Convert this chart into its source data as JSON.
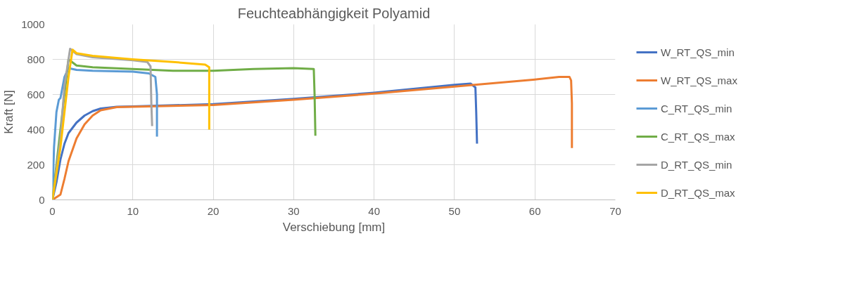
{
  "chart_data": {
    "type": "line",
    "title": "Feuchteabhängigkeit Polyamid",
    "xlabel": "Verschiebung [mm]",
    "ylabel": "Kraft [N]",
    "xlim": [
      0,
      70
    ],
    "ylim": [
      0,
      1000
    ],
    "xticks": [
      0,
      10,
      20,
      30,
      40,
      50,
      60,
      70
    ],
    "yticks": [
      0,
      200,
      400,
      600,
      800,
      1000
    ],
    "grid": true,
    "legend": "right",
    "marker": "none",
    "line_style": "solid",
    "series": [
      {
        "name": "W_RT_QS_min",
        "color": "#4472c4",
        "x": [
          0,
          0.5,
          1,
          1.5,
          2,
          3,
          4,
          5,
          6,
          8,
          10,
          20,
          30,
          40,
          50,
          52,
          52.6,
          52.7,
          52.8
        ],
        "values": [
          0,
          100,
          230,
          320,
          380,
          440,
          480,
          505,
          520,
          530,
          532,
          545,
          575,
          610,
          655,
          662,
          640,
          500,
          320
        ]
      },
      {
        "name": "W_RT_QS_max",
        "color": "#ed7d31",
        "x": [
          0,
          1,
          1.5,
          2,
          3,
          4,
          5,
          6,
          8,
          10,
          20,
          30,
          40,
          50,
          60,
          63,
          64.3,
          64.5,
          64.6,
          64.6
        ],
        "values": [
          0,
          30,
          120,
          220,
          350,
          430,
          480,
          510,
          528,
          530,
          540,
          570,
          605,
          645,
          685,
          700,
          700,
          680,
          550,
          295
        ]
      },
      {
        "name": "C_RT_QS_min",
        "color": "#5b9bd5",
        "x": [
          0,
          0.2,
          0.5,
          0.8,
          1,
          1.5,
          2,
          3,
          5,
          10,
          12,
          12.8,
          13,
          13
        ],
        "values": [
          0,
          300,
          500,
          570,
          580,
          700,
          750,
          740,
          735,
          730,
          720,
          700,
          600,
          360
        ]
      },
      {
        "name": "C_RT_QS_max",
        "color": "#70ad47",
        "x": [
          0,
          1,
          2,
          3,
          5,
          10,
          15,
          20,
          25,
          30,
          32.5,
          32.6,
          32.7
        ],
        "values": [
          0,
          400,
          800,
          765,
          755,
          745,
          735,
          735,
          745,
          750,
          745,
          600,
          365
        ]
      },
      {
        "name": "D_RT_QS_min",
        "color": "#a5a5a5",
        "x": [
          0,
          1,
          1.5,
          2.2,
          3,
          5,
          10,
          11.8,
          12.2,
          12.3,
          12.4
        ],
        "values": [
          0,
          350,
          650,
          860,
          830,
          812,
          795,
          785,
          760,
          550,
          420
        ]
      },
      {
        "name": "D_RT_QS_max",
        "color": "#ffc000",
        "x": [
          0,
          1,
          2,
          2.5,
          3,
          5,
          10,
          15,
          19,
          19.5,
          19.5
        ],
        "values": [
          0,
          300,
          700,
          855,
          835,
          820,
          800,
          785,
          770,
          755,
          400
        ]
      }
    ]
  }
}
